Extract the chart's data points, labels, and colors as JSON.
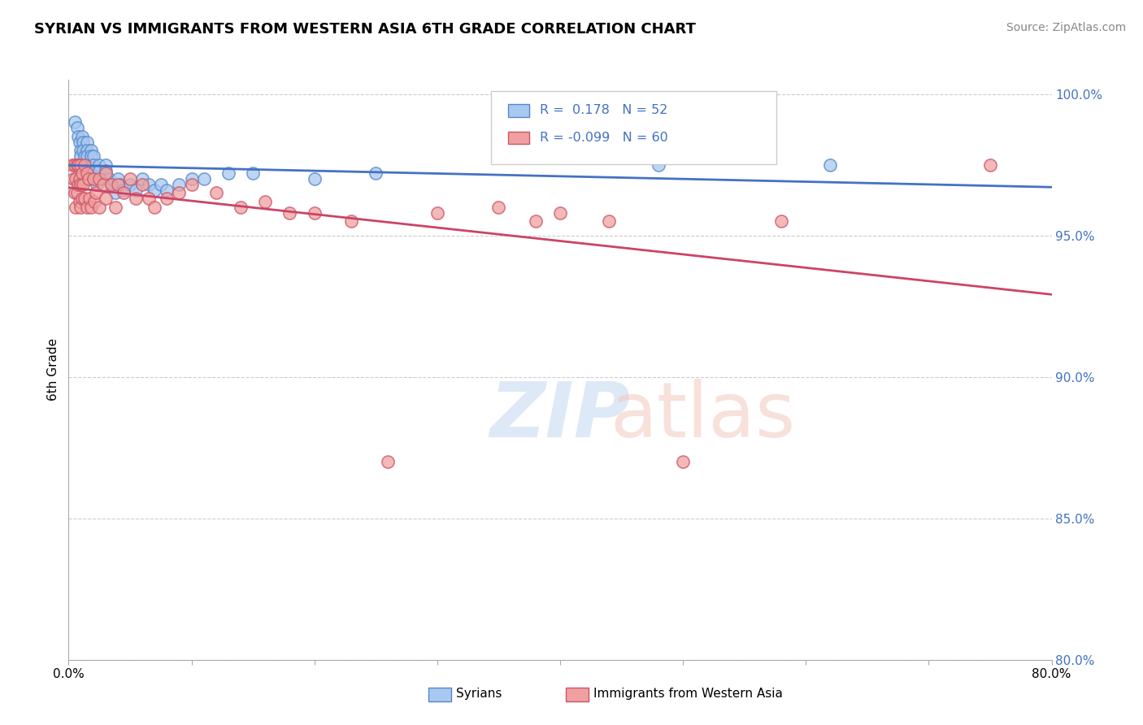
{
  "title": "SYRIAN VS IMMIGRANTS FROM WESTERN ASIA 6TH GRADE CORRELATION CHART",
  "source": "Source: ZipAtlas.com",
  "ylabel": "6th Grade",
  "xmin": 0.0,
  "xmax": 0.8,
  "ymin": 0.8,
  "ymax": 1.005,
  "yticks": [
    0.8,
    0.85,
    0.9,
    0.95,
    1.0
  ],
  "ytick_labels": [
    "80.0%",
    "85.0%",
    "90.0%",
    "95.0%",
    "100.0%"
  ],
  "xticks": [
    0.0,
    0.1,
    0.2,
    0.3,
    0.4,
    0.5,
    0.6,
    0.7,
    0.8
  ],
  "xtick_labels": [
    "0.0%",
    "",
    "",
    "",
    "",
    "",
    "",
    "",
    "80.0%"
  ],
  "blue_R": 0.178,
  "blue_N": 52,
  "pink_R": -0.099,
  "pink_N": 60,
  "blue_face": "#a8c8f0",
  "blue_edge": "#5588cc",
  "pink_face": "#f0a0a0",
  "pink_edge": "#cc5566",
  "blue_line": "#4472C4",
  "pink_line": "#cc4466",
  "syrians_x": [
    0.005,
    0.007,
    0.008,
    0.009,
    0.01,
    0.01,
    0.01,
    0.011,
    0.012,
    0.012,
    0.013,
    0.014,
    0.015,
    0.015,
    0.015,
    0.016,
    0.017,
    0.018,
    0.018,
    0.019,
    0.02,
    0.02,
    0.021,
    0.022,
    0.023,
    0.025,
    0.025,
    0.028,
    0.03,
    0.03,
    0.033,
    0.035,
    0.038,
    0.04,
    0.042,
    0.045,
    0.05,
    0.055,
    0.06,
    0.065,
    0.07,
    0.075,
    0.08,
    0.09,
    0.1,
    0.11,
    0.13,
    0.15,
    0.2,
    0.25,
    0.48,
    0.62
  ],
  "syrians_y": [
    0.99,
    0.988,
    0.985,
    0.983,
    0.98,
    0.978,
    0.975,
    0.985,
    0.983,
    0.98,
    0.978,
    0.975,
    0.983,
    0.98,
    0.978,
    0.975,
    0.973,
    0.98,
    0.978,
    0.975,
    0.978,
    0.975,
    0.973,
    0.97,
    0.968,
    0.975,
    0.973,
    0.97,
    0.975,
    0.973,
    0.97,
    0.968,
    0.965,
    0.97,
    0.968,
    0.966,
    0.968,
    0.966,
    0.97,
    0.968,
    0.966,
    0.968,
    0.966,
    0.968,
    0.97,
    0.97,
    0.972,
    0.972,
    0.97,
    0.972,
    0.975,
    0.975
  ],
  "immigrants_x": [
    0.003,
    0.004,
    0.005,
    0.005,
    0.006,
    0.006,
    0.007,
    0.007,
    0.008,
    0.008,
    0.009,
    0.009,
    0.01,
    0.01,
    0.01,
    0.011,
    0.011,
    0.012,
    0.013,
    0.013,
    0.015,
    0.015,
    0.016,
    0.017,
    0.018,
    0.02,
    0.021,
    0.022,
    0.025,
    0.025,
    0.028,
    0.03,
    0.03,
    0.035,
    0.038,
    0.04,
    0.045,
    0.05,
    0.055,
    0.06,
    0.065,
    0.07,
    0.08,
    0.09,
    0.1,
    0.12,
    0.14,
    0.16,
    0.18,
    0.2,
    0.23,
    0.26,
    0.3,
    0.35,
    0.38,
    0.4,
    0.44,
    0.5,
    0.58,
    0.75
  ],
  "immigrants_y": [
    0.975,
    0.97,
    0.975,
    0.965,
    0.97,
    0.96,
    0.975,
    0.965,
    0.975,
    0.968,
    0.97,
    0.962,
    0.975,
    0.968,
    0.96,
    0.972,
    0.963,
    0.968,
    0.975,
    0.963,
    0.972,
    0.96,
    0.97,
    0.963,
    0.96,
    0.97,
    0.962,
    0.965,
    0.97,
    0.96,
    0.968,
    0.972,
    0.963,
    0.968,
    0.96,
    0.968,
    0.965,
    0.97,
    0.963,
    0.968,
    0.963,
    0.96,
    0.963,
    0.965,
    0.968,
    0.965,
    0.96,
    0.962,
    0.958,
    0.958,
    0.955,
    0.87,
    0.958,
    0.96,
    0.955,
    0.958,
    0.955,
    0.87,
    0.955,
    0.975
  ]
}
